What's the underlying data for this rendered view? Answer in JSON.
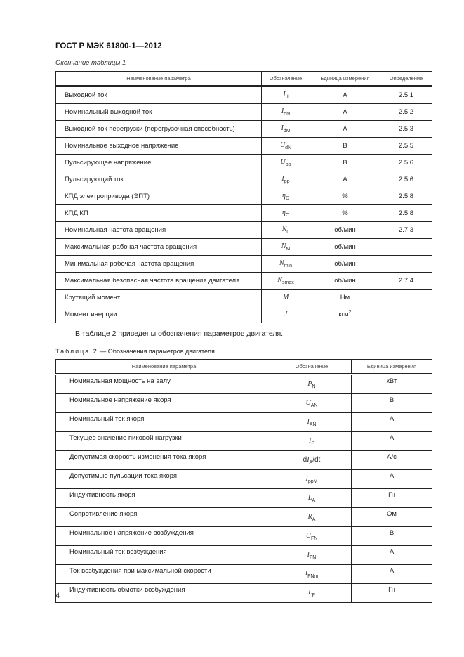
{
  "header": {
    "doc_id": "ГОСТ Р МЭК  61800-1—2012"
  },
  "table1": {
    "caption": "Окончание таблицы 1",
    "columns": [
      "Наименование параметра",
      "Обозначение",
      "Единица измерения",
      "Определение"
    ],
    "rows": [
      {
        "name": "Выходной ток",
        "sym": {
          "main": "I",
          "sub": "d"
        },
        "unit": "А",
        "def": "2.5.1"
      },
      {
        "name": "Номинальный выходной ток",
        "sym": {
          "main": "I",
          "sub": "dN"
        },
        "unit": "А",
        "def": "2.5.2"
      },
      {
        "name": "Выходной ток перегрузки (перегрузочная способность)",
        "sym": {
          "main": "I",
          "sub": "dM"
        },
        "unit": "А",
        "def": "2.5.3"
      },
      {
        "name": "Номинальное выходное напряжение",
        "sym": {
          "main": "U",
          "sub": "dN"
        },
        "unit": "В",
        "def": "2.5.5"
      },
      {
        "name": "Пульсирующее напряжение",
        "sym": {
          "main": "U",
          "sub": "pp"
        },
        "unit": "В",
        "def": "2.5.6"
      },
      {
        "name": "Пульсирующий ток",
        "sym": {
          "main": "I",
          "sub": "pp"
        },
        "unit": "А",
        "def": "2.5.6"
      },
      {
        "name": "КПД электропривода (ЭПТ)",
        "sym": {
          "main": "η",
          "sub": "D"
        },
        "unit": "%",
        "def": "2.5.8"
      },
      {
        "name": "КПД КП",
        "sym": {
          "main": "η",
          "sub": "C"
        },
        "unit": "%",
        "def": "2.5.8"
      },
      {
        "name": "Номинальная частота вращения",
        "sym": {
          "main": "N",
          "sub": "0"
        },
        "unit": "об/мин",
        "def": "2.7.3"
      },
      {
        "name": "Максимальная рабочая частота вращения",
        "sym": {
          "main": "N",
          "sub": "M"
        },
        "unit": "об/мин",
        "def": ""
      },
      {
        "name": "Минимальная рабочая частота вращения",
        "sym": {
          "main": "N",
          "sub": "min"
        },
        "unit": "об/мин",
        "def": ""
      },
      {
        "name": "Максимальная безопасная частота вращения двигателя",
        "sym": {
          "main": "N",
          "sub": "smax"
        },
        "unit": "об/мин",
        "def": "2.7.4"
      },
      {
        "name": "Крутящий момент",
        "sym": {
          "main": "M",
          "sub": ""
        },
        "unit": "Нм",
        "def": ""
      },
      {
        "name": "Момент инерции",
        "sym": {
          "main": "J",
          "sub": ""
        },
        "unit": "кгм",
        "unit_sup": "2",
        "def": ""
      }
    ]
  },
  "paragraph": "В таблице 2 приведены обозначения параметров двигателя.",
  "table2": {
    "caption_label": "Таблица 2",
    "caption_text": " — Обозначения параметров двигателя",
    "columns": [
      "Наименование параметра",
      "Обозначение",
      "Единица измерения"
    ],
    "rows": [
      {
        "name": "Номинальная мощность на валу",
        "sym": {
          "main": "P",
          "sub": "N"
        },
        "unit": "кВт"
      },
      {
        "name": "Номинальное напряжение якоря",
        "sym": {
          "main": "U",
          "sub": "AN"
        },
        "unit": "В"
      },
      {
        "name": "Номинальный ток якоря",
        "sym": {
          "main": "I",
          "sub": "AN"
        },
        "unit": "А"
      },
      {
        "name": "Текущее значение пиковой нагрузки",
        "sym": {
          "main": "I",
          "sub": "P"
        },
        "unit": "А"
      },
      {
        "name": "Допустимая скорость изменения тока якоря",
        "sym": {
          "prefix": "d",
          "main": "I",
          "sub": "A",
          "suffix": "/dt"
        },
        "unit": "А/с"
      },
      {
        "name": "Допустимые пульсации тока якоря",
        "sym": {
          "main": "I",
          "sub": "ppM"
        },
        "unit": "А"
      },
      {
        "name": "Индуктивность якоря",
        "sym": {
          "main": "L",
          "sub": "A"
        },
        "unit": "Гн"
      },
      {
        "name": "Сопротивление якоря",
        "sym": {
          "main": "R",
          "sub": "A"
        },
        "unit": "Ом"
      },
      {
        "name": "Номинальное напряжение возбуждения",
        "sym": {
          "main": "U",
          "sub": "FN"
        },
        "unit": "В"
      },
      {
        "name": "Номинальный ток возбуждения",
        "sym": {
          "main": "I",
          "sub": "FN"
        },
        "unit": "А"
      },
      {
        "name": "Ток возбуждения при максимальной скорости",
        "sym": {
          "main": "I",
          "sub": "FNm"
        },
        "unit": "А"
      },
      {
        "name": "Индуктивность обмотки возбуждения",
        "sym": {
          "main": "L",
          "sub": "F"
        },
        "unit": "Гн"
      }
    ]
  },
  "page_number": "4"
}
